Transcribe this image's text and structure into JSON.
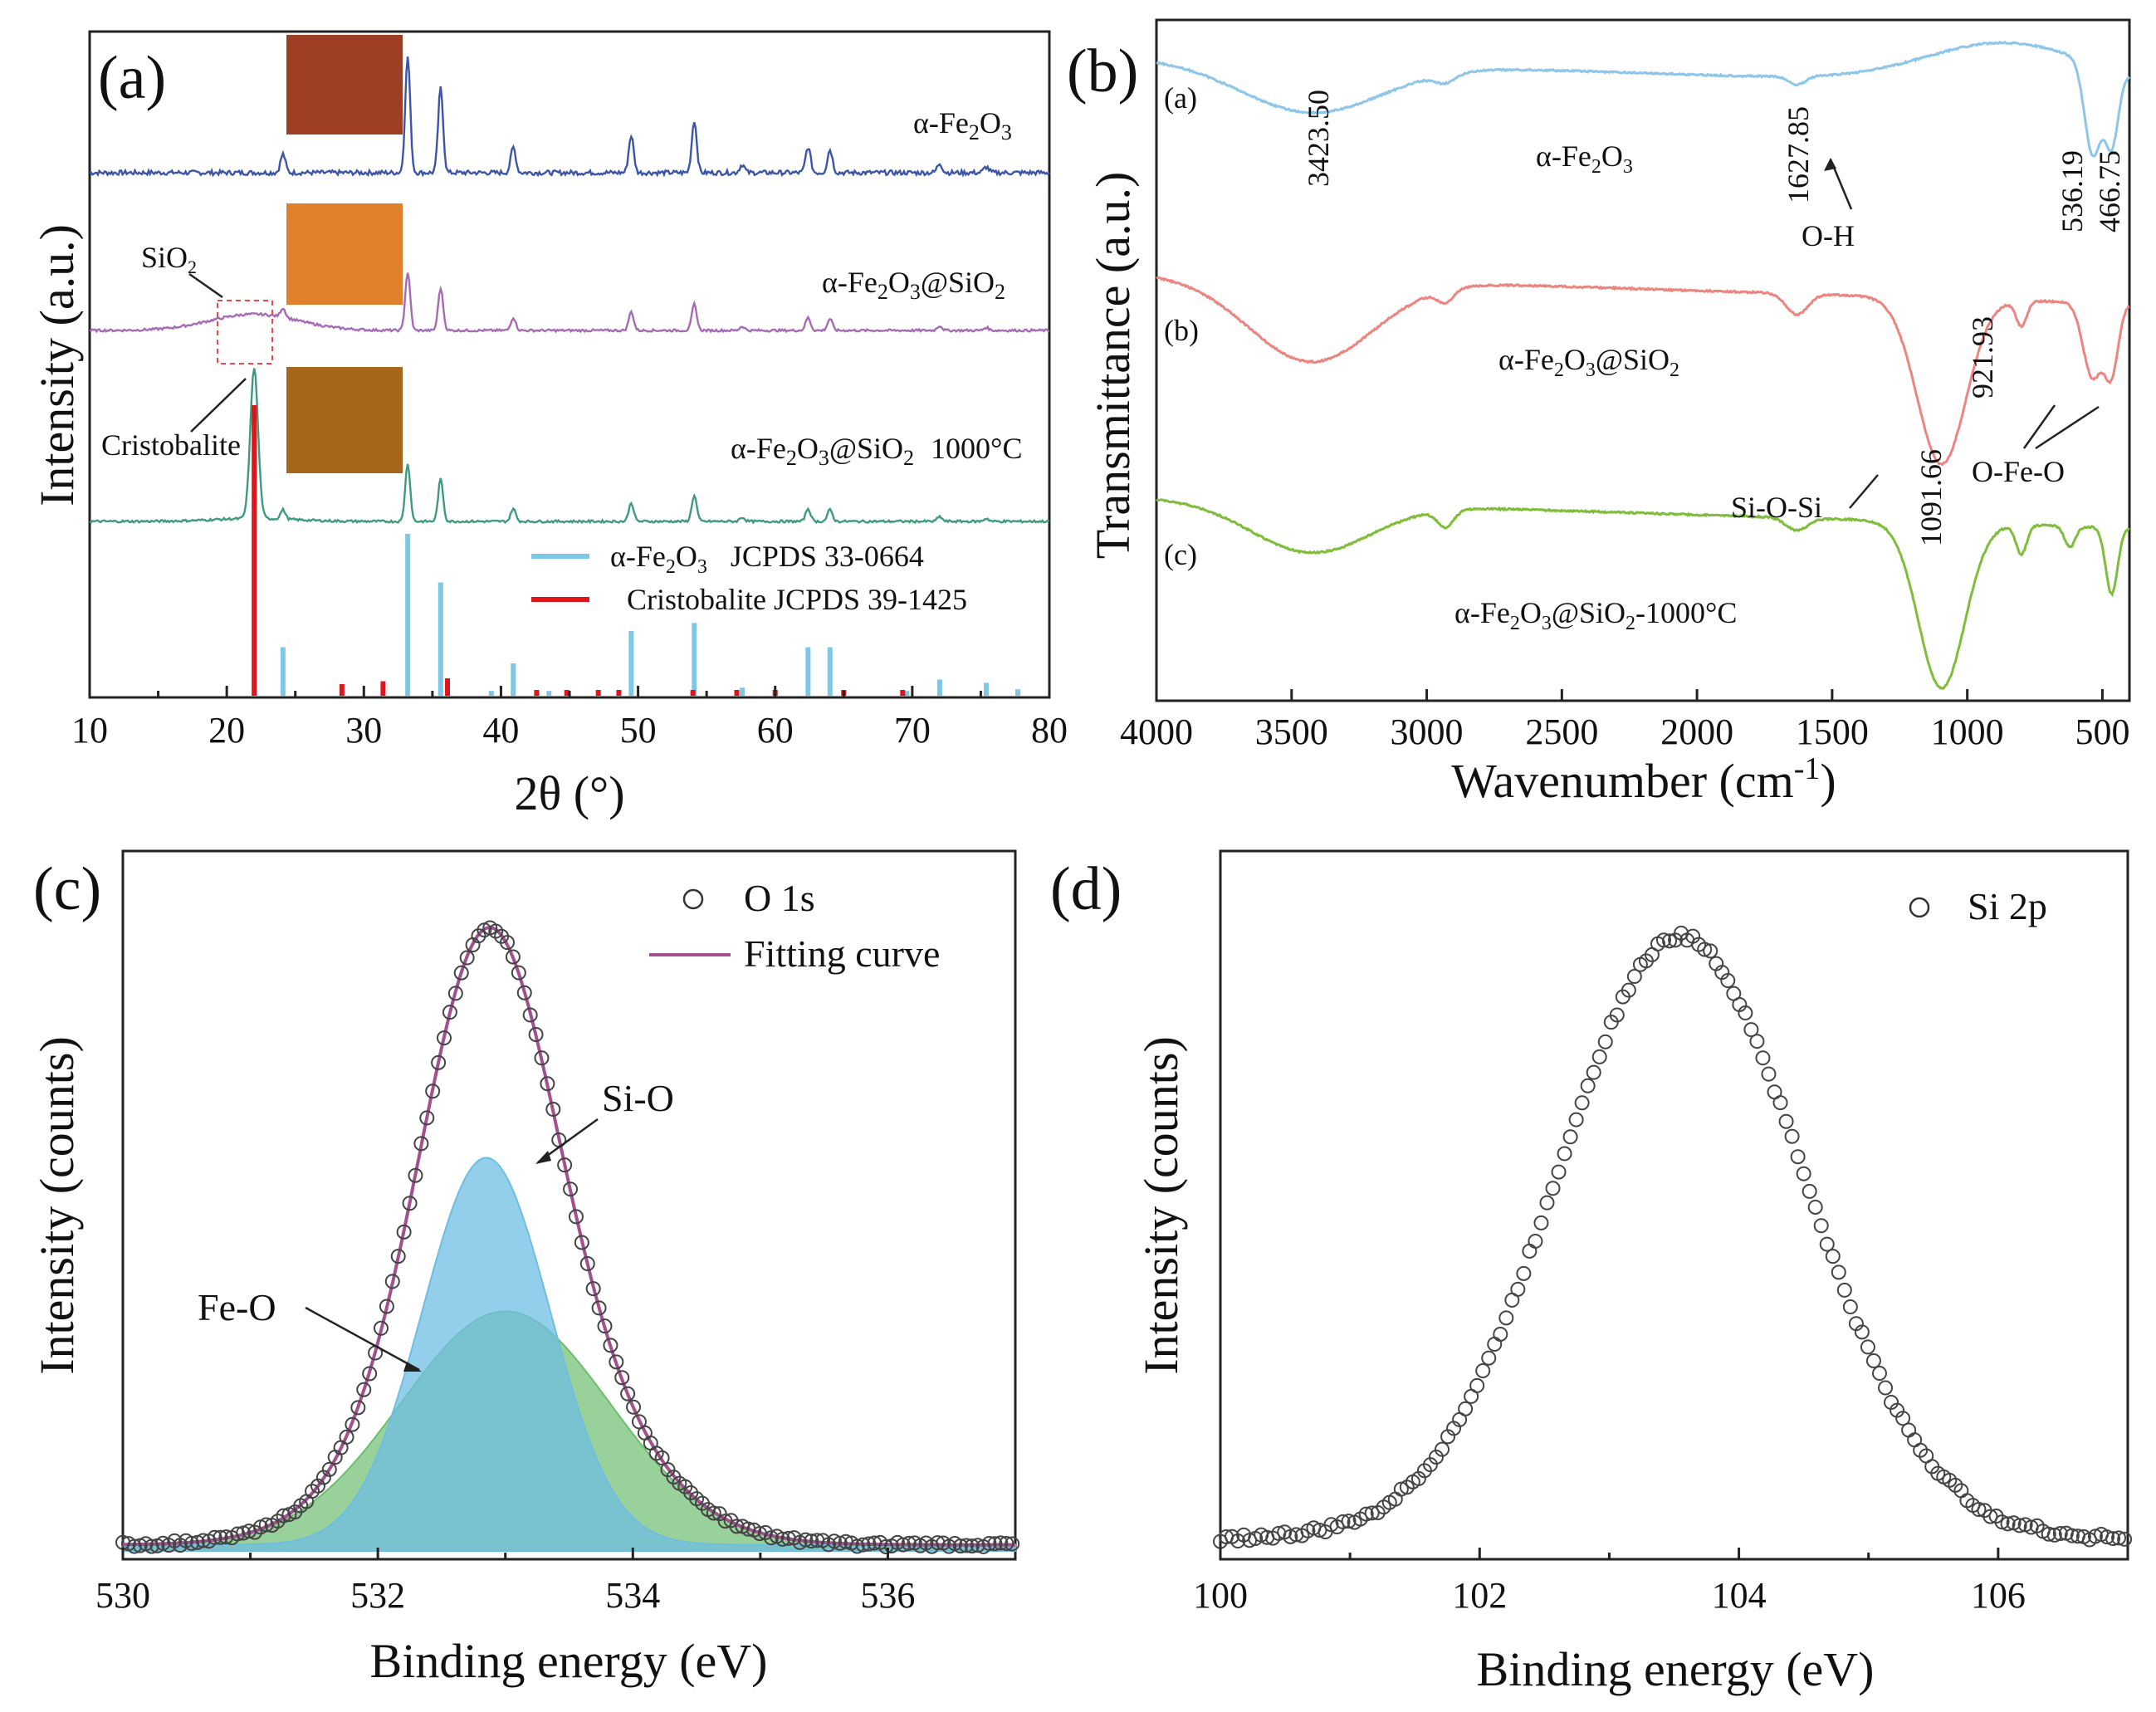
{
  "chart_data": [
    {
      "panel": "(a)",
      "type": "line",
      "title": "",
      "xlabel": "2θ (°)",
      "ylabel": "Intensity (a.u.)",
      "xlim": [
        10,
        80
      ],
      "xticks": [
        "10",
        "20",
        "30",
        "40",
        "50",
        "60",
        "70",
        "80"
      ],
      "peak_positions": [
        24.1,
        33.2,
        35.6,
        40.9,
        49.5,
        54.1,
        57.6,
        62.4,
        64.0,
        72.0,
        75.4
      ],
      "peak_heights": [
        0.16,
        1.0,
        0.73,
        0.22,
        0.32,
        0.45,
        0.07,
        0.22,
        0.2,
        0.08,
        0.05
      ],
      "series": [
        {
          "name": "α-Fe2O3",
          "label_main": "α-Fe",
          "label_mid": "O",
          "label_end": "",
          "color": "#3d55a8"
        },
        {
          "name": "α-Fe2O3@SiO2",
          "label_main": "α-Fe",
          "label_mid": "O",
          "label_end": "@SiO",
          "color": "#a66bb5"
        },
        {
          "name": "α-Fe2O3@SiO2 1000°C",
          "label_main": "α-Fe",
          "label_mid": "O",
          "label_end": "@SiO",
          "label_tail": "1000°C",
          "color": "#3f9a80"
        }
      ],
      "reference_1": {
        "name": "α-Fe2O3 JCPDS 33-0664",
        "text_a": "α-Fe",
        "text_b": "O",
        "text_c": "JCPDS 33-0664",
        "color": "#7ec7e6",
        "x": [
          24.1,
          33.2,
          35.6,
          39.3,
          40.9,
          43.5,
          49.5,
          54.1,
          57.6,
          62.4,
          64.0,
          69.6,
          72.0,
          75.4,
          77.7
        ],
        "y": [
          30,
          100,
          70,
          3,
          20,
          3,
          40,
          45,
          5,
          30,
          30,
          3,
          10,
          8,
          4
        ]
      },
      "reference_2": {
        "name": "Cristobalite JCPDS 39-1425",
        "text": "Cristobalite JCPDS 39-1425",
        "color": "#e0141b",
        "x": [
          22.0,
          28.4,
          31.4,
          36.1,
          42.6,
          44.8,
          47.1,
          48.6,
          54.0,
          57.2,
          60.0,
          65.0,
          69.3
        ],
        "y": [
          100,
          4,
          5,
          6,
          2,
          2,
          2,
          2,
          2,
          2,
          2,
          2,
          2
        ]
      },
      "annotations": {
        "sio2": "SiO",
        "sio2_sub": "2",
        "cristobalite": "Cristobalite"
      }
    },
    {
      "panel": "(b)",
      "type": "line",
      "xlabel": "Wavenumber (cm",
      "xlabel_sup": "-1",
      "xlabel_end": ")",
      "ylabel": "Transmittance (a.u.)",
      "xlim": [
        4000,
        400
      ],
      "xticks": [
        "4000",
        "3500",
        "3000",
        "2500",
        "2000",
        "1500",
        "1000",
        "500"
      ],
      "curve_labels": [
        "(a)",
        "(b)",
        "(c)"
      ],
      "series": [
        {
          "name": "α-Fe2O3",
          "text_a": "α-Fe",
          "text_b": "O",
          "text_c": "",
          "color": "#8ec5ea"
        },
        {
          "name": "α-Fe2O3@SiO2",
          "text_a": "α-Fe",
          "text_b": "O",
          "text_c": "@SiO",
          "color": "#ec8580"
        },
        {
          "name": "α-Fe2O3@SiO2-1000°C",
          "text_a": "α-Fe",
          "text_b": "O",
          "text_c": "@SiO",
          "text_d": "-1000°C",
          "color": "#7fbd3a"
        }
      ],
      "peak_labels": [
        "3423.50",
        "1627.85",
        "536.19",
        "466.75",
        "921.93",
        "1091.66"
      ],
      "group_labels": {
        "oh": "O-H",
        "siosi": "Si-O-Si",
        "ofeo": "O-Fe-O"
      }
    },
    {
      "panel": "(c)",
      "type": "scatter",
      "xlabel": "Binding energy (eV)",
      "ylabel": "Intensity (counts)",
      "xlim": [
        530,
        537
      ],
      "xticks": [
        "530",
        "532",
        "534",
        "536"
      ],
      "legend": {
        "points": "O 1s",
        "line": "Fitting curve"
      },
      "components": [
        {
          "name": "Si-O",
          "center": 532.85,
          "sigma": 0.5,
          "height": 0.63,
          "color": "#6fbde3"
        },
        {
          "name": "Fe-O",
          "center": 533.0,
          "sigma": 0.82,
          "height": 0.38,
          "color": "#6cbe6e"
        }
      ],
      "baseline": 0.01,
      "points_x_range": [
        530.0,
        537.0
      ],
      "fit_color": "#a2508f"
    },
    {
      "panel": "(d)",
      "type": "scatter",
      "xlabel": "Binding energy (eV)",
      "ylabel": "Intensity (counts)",
      "xlim": [
        100,
        107
      ],
      "xticks": [
        "100",
        "102",
        "104",
        "106"
      ],
      "legend": {
        "points": "Si 2p"
      },
      "peak": {
        "center": 103.55,
        "sigma": 0.95,
        "height": 0.98
      },
      "baseline": 0.02,
      "points_x_range": [
        100.0,
        107.0
      ]
    }
  ]
}
